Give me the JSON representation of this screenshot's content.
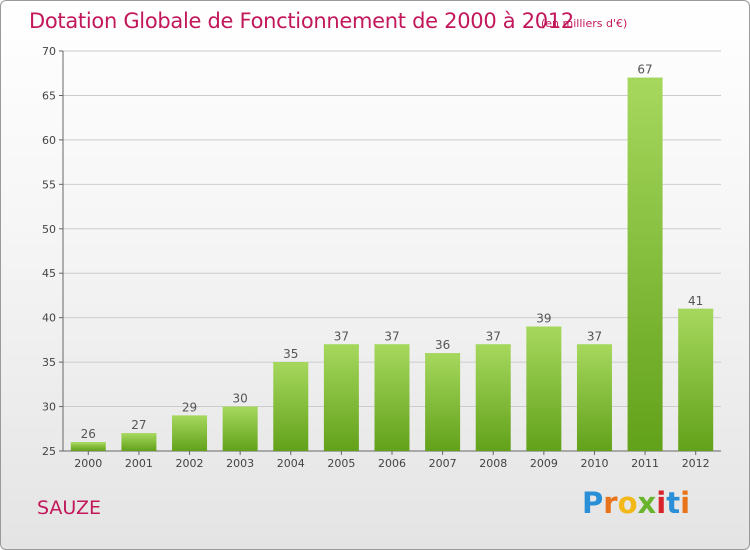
{
  "chart_data": {
    "type": "bar",
    "title": "Dotation Globale de Fonctionnement de 2000 à 2012",
    "subtitle": "(en milliers d'€)",
    "categories": [
      "2000",
      "2001",
      "2002",
      "2003",
      "2004",
      "2005",
      "2006",
      "2007",
      "2008",
      "2009",
      "2010",
      "2011",
      "2012"
    ],
    "values": [
      26,
      27,
      29,
      30,
      35,
      37,
      37,
      36,
      37,
      39,
      37,
      67,
      41
    ],
    "ylim": [
      25,
      70
    ],
    "yticks": [
      25,
      30,
      35,
      40,
      45,
      50,
      55,
      60,
      65,
      70
    ],
    "grid": true,
    "bar_color": "#7cb82f",
    "bar_color_light": "#a3d65a",
    "xlabel": "",
    "ylabel": ""
  },
  "commune": "SAUZE",
  "brand": {
    "letters": [
      "P",
      "r",
      "o",
      "x",
      "i",
      "t",
      "i"
    ],
    "colors": [
      "#2a8fd6",
      "#e8731a",
      "#f2b817",
      "#6ab42d",
      "#d8232a",
      "#2a8fd6",
      "#e8731a"
    ]
  },
  "colors": {
    "title": "#c2185b",
    "grid": "#cccccc"
  }
}
